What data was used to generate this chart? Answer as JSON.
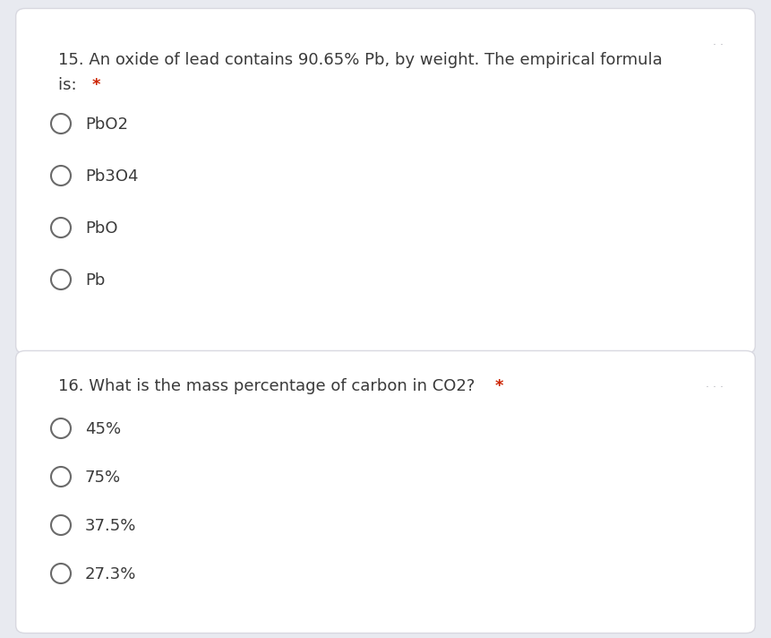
{
  "background_color": "#e8eaf0",
  "card_color": "#ffffff",
  "card_edge_color": "#d8d8e0",
  "text_color": "#3a3a3a",
  "asterisk_color": "#cc2200",
  "circle_color": "#6a6a6a",
  "dots_color": "#b0b0b8",
  "q1_line1": "15. An oxide of lead contains 90.65% Pb, by weight. The empirical formula",
  "q1_line2_main": "is: ",
  "q1_line2_star": "*",
  "q1_options": [
    "PbO2",
    "Pb3O4",
    "PbO",
    "Pb"
  ],
  "q2_line_main": "16. What is the mass percentage of carbon in CO2? ",
  "q2_line_star": "*",
  "q2_options": [
    "45%",
    "75%",
    "37.5%",
    "27.3%"
  ],
  "font_size_q": 13.0,
  "font_size_opt": 13.0,
  "font_size_dots": 9.0
}
